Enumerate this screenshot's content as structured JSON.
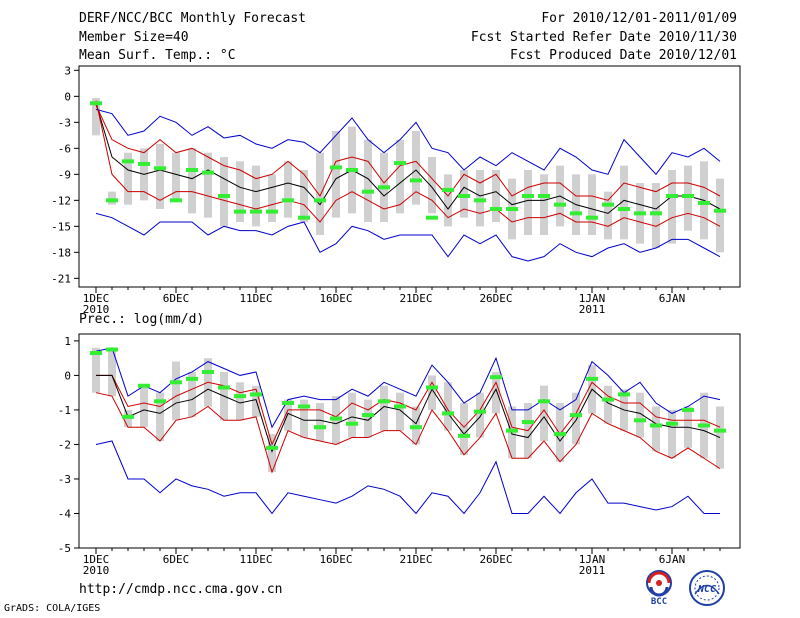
{
  "header": {
    "title": "DERF/NCC/BCC Monthly Forecast",
    "member_size": "Member Size=40",
    "variable": "Mean Surf. Temp.: °C",
    "period": "For 2010/12/01-2011/01/09",
    "fcst_started": "Fcst Started Refer Date 2010/11/30",
    "fcst_produced": "Fcst Produced Date 2010/12/01"
  },
  "colors": {
    "spread": "#0000cc",
    "band": "#cc0000",
    "mean": "#000000",
    "box": "#d0d0d0",
    "observed": "#33ee33"
  },
  "chart_data": [
    {
      "type": "line",
      "name": "temperature",
      "title": "Mean Surf. Temp.: °C",
      "x_tick_labels": [
        {
          "day": 1,
          "label": "1DEC",
          "sublabel": "2010"
        },
        {
          "day": 6,
          "label": "6DEC",
          "sublabel": ""
        },
        {
          "day": 11,
          "label": "11DEC",
          "sublabel": ""
        },
        {
          "day": 16,
          "label": "16DEC",
          "sublabel": ""
        },
        {
          "day": 21,
          "label": "21DEC",
          "sublabel": ""
        },
        {
          "day": 26,
          "label": "26DEC",
          "sublabel": ""
        },
        {
          "day": 32,
          "label": "1JAN",
          "sublabel": "2011"
        },
        {
          "day": 37,
          "label": "6JAN",
          "sublabel": ""
        }
      ],
      "y_ticks": [
        3,
        0,
        -3,
        -6,
        -9,
        -12,
        -15,
        -18,
        -21
      ],
      "ylim": [
        -22,
        3.5
      ],
      "days": [
        1,
        2,
        3,
        4,
        5,
        6,
        7,
        8,
        9,
        10,
        11,
        12,
        13,
        14,
        15,
        16,
        17,
        18,
        19,
        20,
        21,
        22,
        23,
        24,
        25,
        26,
        27,
        28,
        29,
        30,
        31,
        32,
        33,
        34,
        35,
        36,
        37,
        38,
        39,
        40
      ],
      "series": [
        {
          "name": "max",
          "values": [
            -1.5,
            -2,
            -4.5,
            -4,
            -2.3,
            -3,
            -4.5,
            -3.5,
            -4.8,
            -4.5,
            -5.5,
            -6,
            -5,
            -5.3,
            -6.5,
            -4.5,
            -2.5,
            -5,
            -6.5,
            -5,
            -3,
            -6,
            -6.5,
            -8.5,
            -7,
            -8,
            -6.5,
            -7.5,
            -8.5,
            -6,
            -7,
            -8.5,
            -9,
            -5,
            -7,
            -9,
            -6.5,
            -7,
            -6,
            -7.5
          ]
        },
        {
          "name": "upper",
          "values": [
            -1,
            -5,
            -6,
            -6.5,
            -5,
            -6.5,
            -6,
            -7,
            -8,
            -8.5,
            -9.5,
            -9,
            -7.5,
            -9,
            -11.5,
            -7.5,
            -7,
            -7.5,
            -10,
            -8,
            -7.5,
            -9.5,
            -11.5,
            -9,
            -10,
            -9,
            -11.5,
            -10.5,
            -10,
            -10,
            -11.5,
            -11.5,
            -12,
            -10,
            -10.5,
            -11,
            -10,
            -10,
            -10.5,
            -11.5
          ]
        },
        {
          "name": "mean",
          "values": [
            -0.8,
            -7,
            -8.5,
            -9,
            -8.5,
            -9,
            -9.5,
            -8.5,
            -9.5,
            -10.5,
            -11,
            -10.5,
            -10,
            -10.5,
            -12.5,
            -9.5,
            -8.5,
            -9.5,
            -11.5,
            -10,
            -8.5,
            -10.5,
            -13,
            -10.5,
            -11.5,
            -11,
            -12.5,
            -12,
            -12,
            -11.5,
            -12.5,
            -13,
            -13.5,
            -12,
            -12.5,
            -13,
            -11.5,
            -11.5,
            -12,
            -13
          ]
        },
        {
          "name": "lower",
          "values": [
            -0.5,
            -9,
            -11,
            -11,
            -12,
            -11,
            -11,
            -11.5,
            -12,
            -12.5,
            -13,
            -12.5,
            -12,
            -12.5,
            -14.5,
            -12,
            -11,
            -12,
            -13,
            -12.5,
            -11,
            -12,
            -14,
            -13,
            -13.5,
            -13,
            -14.5,
            -14,
            -14,
            -13.5,
            -14.5,
            -14.5,
            -15,
            -14,
            -14.5,
            -15,
            -14,
            -13.5,
            -14,
            -15
          ]
        },
        {
          "name": "min",
          "values": [
            -13.5,
            -14,
            -15,
            -16,
            -14.5,
            -14.5,
            -14.5,
            -16,
            -15,
            -15.5,
            -15.5,
            -16,
            -15,
            -14.5,
            -18,
            -17,
            -15,
            -15.5,
            -16.5,
            -16,
            -16,
            -16,
            -18.5,
            -16,
            -17,
            -16,
            -18.5,
            -19,
            -18.5,
            -17,
            -18,
            -18.5,
            -17.5,
            -17,
            -18,
            -17.5,
            -16.5,
            -16.5,
            -17.5,
            -18.5
          ]
        }
      ],
      "boxes": {
        "top": [
          -0.2,
          -11,
          -6.5,
          -6,
          -5.5,
          -6.5,
          -6,
          -6.5,
          -7,
          -7.5,
          -8,
          -9,
          -7.5,
          -8.5,
          -6.5,
          -4,
          -3.5,
          -5,
          -6.5,
          -5,
          -4,
          -7,
          -9,
          -8.5,
          -8.5,
          -8.5,
          -9.5,
          -8.5,
          -9,
          -8,
          -9,
          -9,
          -11,
          -8,
          -10,
          -10,
          -8.5,
          -8,
          -7.5,
          -9.5
        ],
        "bottom": [
          -4.5,
          -12.5,
          -12.5,
          -12,
          -13,
          -12,
          -13.5,
          -14,
          -15,
          -14.5,
          -15,
          -14.5,
          -14,
          -14.5,
          -16,
          -14,
          -13.5,
          -14.5,
          -14.5,
          -13.5,
          -12.5,
          -13.5,
          -15,
          -14,
          -15,
          -14.5,
          -16.5,
          -16,
          -16,
          -15,
          -16,
          -16,
          -16.5,
          -16.5,
          -17,
          -17.5,
          -17,
          -15.5,
          -16.5,
          -18
        ]
      },
      "observed": [
        -0.8,
        -12,
        -7.5,
        -7.8,
        -8.3,
        -12,
        -8.5,
        -8.8,
        -11.5,
        -13.3,
        -13.3,
        -13.3,
        -12,
        -14,
        -12,
        -8.2,
        -8.5,
        -11,
        -10.5,
        -7.7,
        -9.7,
        -14,
        -10.8,
        -11.5,
        -12,
        -13,
        -13,
        -11.5,
        -11.5,
        -12.5,
        -13.5,
        -14,
        -12.5,
        -13,
        -13.5,
        -13.5,
        -11.5,
        -11.5,
        -12.3,
        -13.2
      ]
    },
    {
      "type": "line",
      "name": "precipitation",
      "title": "Prec.: log(mm/d)",
      "x_tick_labels": [
        {
          "day": 1,
          "label": "1DEC",
          "sublabel": "2010"
        },
        {
          "day": 6,
          "label": "6DEC",
          "sublabel": ""
        },
        {
          "day": 11,
          "label": "11DEC",
          "sublabel": ""
        },
        {
          "day": 16,
          "label": "16DEC",
          "sublabel": ""
        },
        {
          "day": 21,
          "label": "21DEC",
          "sublabel": ""
        },
        {
          "day": 26,
          "label": "26DEC",
          "sublabel": ""
        },
        {
          "day": 32,
          "label": "1JAN",
          "sublabel": "2011"
        },
        {
          "day": 37,
          "label": "6JAN",
          "sublabel": ""
        }
      ],
      "y_ticks": [
        1,
        0,
        -1,
        -2,
        -3,
        -4,
        -5
      ],
      "ylim": [
        -5,
        1.2
      ],
      "days": [
        1,
        2,
        3,
        4,
        5,
        6,
        7,
        8,
        9,
        10,
        11,
        12,
        13,
        14,
        15,
        16,
        17,
        18,
        19,
        20,
        21,
        22,
        23,
        24,
        25,
        26,
        27,
        28,
        29,
        30,
        31,
        32,
        33,
        34,
        35,
        36,
        37,
        38,
        39,
        40
      ],
      "series": [
        {
          "name": "max",
          "values": [
            0.7,
            0.8,
            -0.6,
            -0.3,
            -0.5,
            -0.1,
            0.1,
            0.4,
            0.2,
            0,
            0.1,
            -1.5,
            -0.7,
            -0.6,
            -0.7,
            -0.7,
            -0.4,
            -0.6,
            -0.2,
            -0.4,
            -0.6,
            0.3,
            -0.2,
            -0.8,
            -0.5,
            0.5,
            -1,
            -1,
            -0.7,
            -1,
            -0.7,
            0.4,
            0,
            -0.5,
            -0.2,
            -0.8,
            -1.1,
            -0.9,
            -0.6,
            -0.7
          ]
        },
        {
          "name": "upper",
          "values": [
            0,
            0,
            -0.9,
            -0.8,
            -0.9,
            -0.6,
            -0.4,
            -0.2,
            -0.3,
            -0.5,
            -0.4,
            -2,
            -1,
            -1,
            -1,
            -1.2,
            -0.8,
            -1,
            -0.7,
            -0.8,
            -1,
            -0.2,
            -1,
            -1.5,
            -1,
            -0.2,
            -1.5,
            -1.6,
            -1,
            -1.7,
            -1.1,
            -0.2,
            -0.6,
            -0.8,
            -0.8,
            -1.2,
            -1.3,
            -1.3,
            -1.3,
            -1.5
          ]
        },
        {
          "name": "mean",
          "values": [
            0,
            0,
            -1.2,
            -1,
            -1.1,
            -0.8,
            -0.7,
            -0.4,
            -0.6,
            -0.8,
            -0.7,
            -2.2,
            -1.1,
            -1.3,
            -1.3,
            -1.4,
            -1.2,
            -1.3,
            -0.9,
            -1,
            -1.4,
            -0.4,
            -1.1,
            -1.7,
            -1.2,
            -0.4,
            -1.7,
            -1.8,
            -1.2,
            -1.9,
            -1.3,
            -0.4,
            -0.8,
            -1,
            -1.1,
            -1.4,
            -1.5,
            -1.5,
            -1.6,
            -1.8
          ]
        },
        {
          "name": "lower",
          "values": [
            -0.5,
            -0.6,
            -1.5,
            -1.5,
            -1.9,
            -1.3,
            -1.2,
            -0.9,
            -1.3,
            -1.3,
            -1.2,
            -2.8,
            -1.6,
            -1.8,
            -1.9,
            -2,
            -1.8,
            -1.8,
            -1.6,
            -1.6,
            -2,
            -1,
            -1.6,
            -2.3,
            -1.8,
            -1.1,
            -2.4,
            -2.4,
            -1.9,
            -2.5,
            -2,
            -1.1,
            -1.4,
            -1.6,
            -1.8,
            -2.2,
            -2.4,
            -2.1,
            -2.4,
            -2.7
          ]
        },
        {
          "name": "min",
          "values": [
            -2,
            -1.9,
            -3,
            -3,
            -3.4,
            -3,
            -3.2,
            -3.3,
            -3.5,
            -3.4,
            -3.4,
            -4,
            -3.4,
            -3.5,
            -3.6,
            -3.7,
            -3.5,
            -3.2,
            -3.3,
            -3.5,
            -4,
            -3.4,
            -3.5,
            -4,
            -3.4,
            -2.5,
            -4,
            -4,
            -3.5,
            -4,
            -3.4,
            -3,
            -3.7,
            -3.7,
            -3.8,
            -3.9,
            -3.8,
            -3.5,
            -4,
            -4
          ]
        }
      ],
      "boxes": {
        "top": [
          0.8,
          0.8,
          -1,
          -0.3,
          -0.5,
          0.4,
          0.1,
          0.5,
          0.1,
          -0.2,
          -0.3,
          -1.7,
          -0.7,
          -0.7,
          -0.8,
          -0.6,
          -0.5,
          -0.7,
          -0.3,
          -0.5,
          -0.9,
          0,
          -0.2,
          -0.8,
          -0.5,
          0.1,
          -0.9,
          -0.8,
          -0.3,
          -0.8,
          -0.5,
          0.3,
          -0.3,
          -0.4,
          -0.5,
          -0.9,
          -1,
          -0.9,
          -0.5,
          -0.9
        ]
      },
      "observed": [
        0.65,
        0.75,
        -1.2,
        -0.3,
        -0.75,
        -0.2,
        -0.1,
        0.1,
        -0.35,
        -0.6,
        -0.55,
        -2.1,
        -0.8,
        -0.9,
        -1.5,
        -1.25,
        -1.4,
        -1.15,
        -0.75,
        -0.9,
        -1.5,
        -0.35,
        -1.1,
        -1.75,
        -1.05,
        -0.05,
        -1.6,
        -1.35,
        -0.75,
        -1.7,
        -1.15,
        -0.1,
        -0.7,
        -0.55,
        -1.3,
        -1.45,
        -1.4,
        -1,
        -1.45,
        -1.6
      ]
    }
  ],
  "footer": {
    "url": "http://cmdp.ncc.cma.gov.cn",
    "credit": "GrADS: COLA/IGES",
    "logo_left_text": "BCC",
    "logo_right_text": "NCC"
  }
}
